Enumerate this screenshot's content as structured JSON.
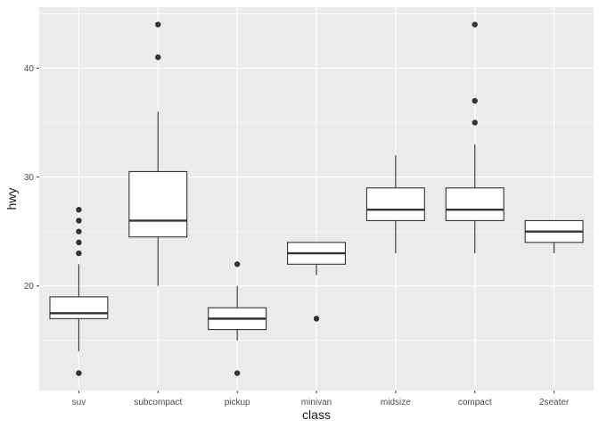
{
  "chart_data": {
    "type": "boxplot",
    "title": "",
    "xlabel": "class",
    "ylabel": "hwy",
    "ylim": [
      10.4,
      45.6
    ],
    "y_ticks": [
      20,
      30,
      40
    ],
    "y_minor_ticks": [
      15,
      25,
      35,
      45
    ],
    "grid": true,
    "legend": "none",
    "colors": {
      "panel_bg": "#ebebeb",
      "grid": "#ffffff",
      "box_fill": "#ffffff",
      "box_line": "#333333",
      "outlier": "#333333",
      "tick_text": "#4d4d4d",
      "title_text": "#1a1a1a"
    },
    "categories": [
      "suv",
      "subcompact",
      "pickup",
      "minivan",
      "midsize",
      "compact",
      "2seater"
    ],
    "boxes": [
      {
        "category": "suv",
        "whisker_low": 14,
        "q1": 17,
        "median": 17.5,
        "q3": 19,
        "whisker_high": 22,
        "outliers": [
          12,
          23,
          24,
          25,
          26,
          27
        ]
      },
      {
        "category": "subcompact",
        "whisker_low": 20,
        "q1": 24.5,
        "median": 26,
        "q3": 30.5,
        "whisker_high": 36,
        "outliers": [
          41,
          44
        ]
      },
      {
        "category": "pickup",
        "whisker_low": 15,
        "q1": 16,
        "median": 17,
        "q3": 18,
        "whisker_high": 20,
        "outliers": [
          12,
          22
        ]
      },
      {
        "category": "minivan",
        "whisker_low": 21,
        "q1": 22,
        "median": 23,
        "q3": 24,
        "whisker_high": 24,
        "outliers": [
          17
        ]
      },
      {
        "category": "midsize",
        "whisker_low": 23,
        "q1": 26,
        "median": 27,
        "q3": 29,
        "whisker_high": 32,
        "outliers": []
      },
      {
        "category": "compact",
        "whisker_low": 23,
        "q1": 26,
        "median": 27,
        "q3": 29,
        "whisker_high": 33,
        "outliers": [
          35,
          37,
          44
        ]
      },
      {
        "category": "2seater",
        "whisker_low": 23,
        "q1": 24,
        "median": 25,
        "q3": 26,
        "whisker_high": 26,
        "outliers": []
      }
    ]
  }
}
